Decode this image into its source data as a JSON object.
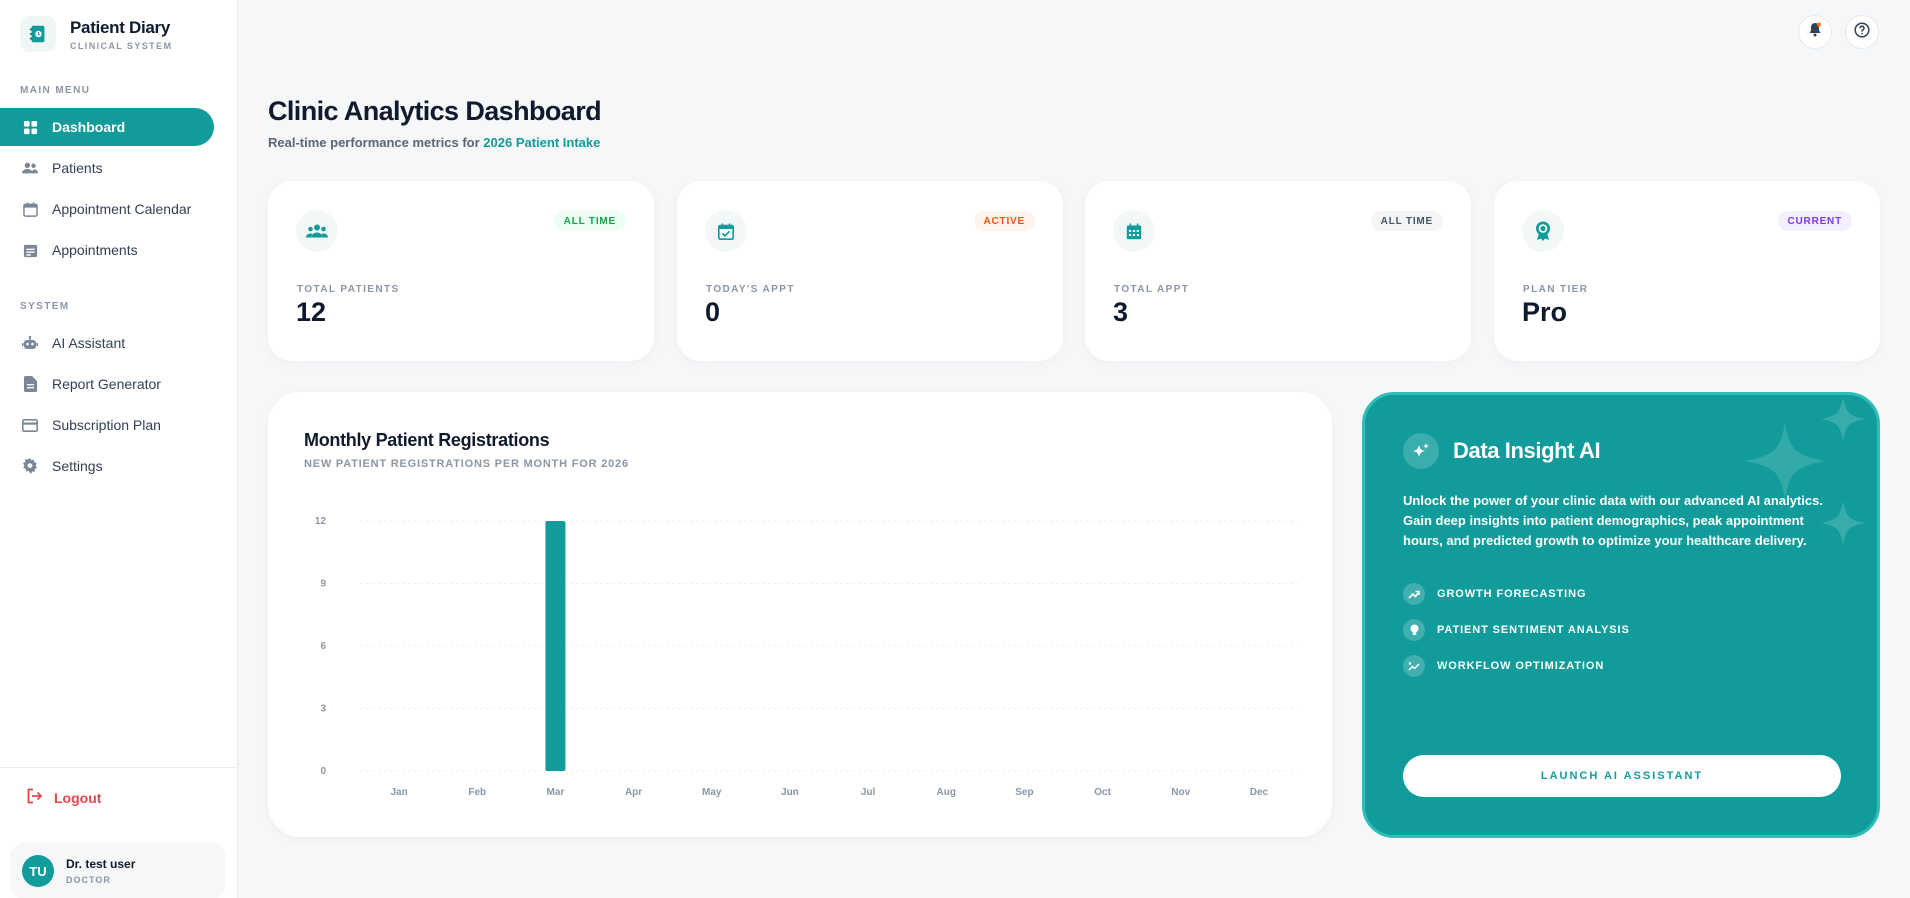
{
  "brand": {
    "title": "Patient Diary",
    "subtitle": "CLINICAL SYSTEM"
  },
  "sidebar": {
    "main_menu_label": "MAIN MENU",
    "system_label": "SYSTEM",
    "main_items": [
      {
        "label": "Dashboard",
        "icon": "grid-icon",
        "active": true
      },
      {
        "label": "Patients",
        "icon": "people-icon"
      },
      {
        "label": "Appointment Calendar",
        "icon": "calendar-icon"
      },
      {
        "label": "Appointments",
        "icon": "list-calendar-icon"
      }
    ],
    "system_items": [
      {
        "label": "AI Assistant",
        "icon": "robot-icon"
      },
      {
        "label": "Report Generator",
        "icon": "document-icon"
      },
      {
        "label": "Subscription Plan",
        "icon": "credit-card-icon"
      },
      {
        "label": "Settings",
        "icon": "gear-icon"
      }
    ],
    "logout_label": "Logout",
    "user": {
      "initials": "TU",
      "name": "Dr. test user",
      "role": "DOCTOR"
    }
  },
  "header": {
    "title": "Clinic Analytics Dashboard",
    "subtitle_prefix": "Real-time performance metrics for ",
    "subtitle_highlight": "2026 Patient Intake"
  },
  "stats": [
    {
      "label": "TOTAL PATIENTS",
      "value": "12",
      "badge": "ALL TIME",
      "badge_color": "#16a34a",
      "badge_bg": "#ecfdf3",
      "icon": "people-icon"
    },
    {
      "label": "TODAY'S APPT",
      "value": "0",
      "badge": "ACTIVE",
      "badge_color": "#ea580c",
      "badge_bg": "#fff4ec",
      "icon": "calendar-check-icon"
    },
    {
      "label": "TOTAL APPT",
      "value": "3",
      "badge": "ALL TIME",
      "badge_color": "#475569",
      "badge_bg": "#f3f5f7",
      "icon": "calendar-grid-icon"
    },
    {
      "label": "PLAN TIER",
      "value": "Pro",
      "badge": "CURRENT",
      "badge_color": "#7c3aed",
      "badge_bg": "#f4efff",
      "icon": "award-icon"
    }
  ],
  "chart_card": {
    "title": "Monthly Patient Registrations",
    "subtitle": "NEW PATIENT REGISTRATIONS PER MONTH FOR 2026"
  },
  "chart_data": {
    "type": "bar",
    "categories": [
      "Jan",
      "Feb",
      "Mar",
      "Apr",
      "May",
      "Jun",
      "Jul",
      "Aug",
      "Sep",
      "Oct",
      "Nov",
      "Dec"
    ],
    "values": [
      0,
      0,
      12,
      0,
      0,
      0,
      0,
      0,
      0,
      0,
      0,
      0
    ],
    "ylim": [
      0,
      12
    ],
    "yticks": [
      0,
      3,
      6,
      9,
      12
    ],
    "bar_color": "#119c9b",
    "grid": true
  },
  "ai_card": {
    "title": "Data Insight AI",
    "description": "Unlock the power of your clinic data with our advanced AI analytics. Gain deep insights into patient demographics, peak appointment hours, and predicted growth to optimize your healthcare delivery.",
    "features": [
      {
        "label": "GROWTH FORECASTING",
        "icon": "trend-up-icon"
      },
      {
        "label": "PATIENT SENTIMENT ANALYSIS",
        "icon": "lightbulb-icon"
      },
      {
        "label": "WORKFLOW OPTIMIZATION",
        "icon": "workflow-icon"
      }
    ],
    "button_label": "LAUNCH AI ASSISTANT"
  },
  "topbar": {
    "notification_icon": "bell-icon",
    "help_icon": "help-icon"
  },
  "colors": {
    "accent": "#119c9b",
    "danger": "#e5484d"
  }
}
